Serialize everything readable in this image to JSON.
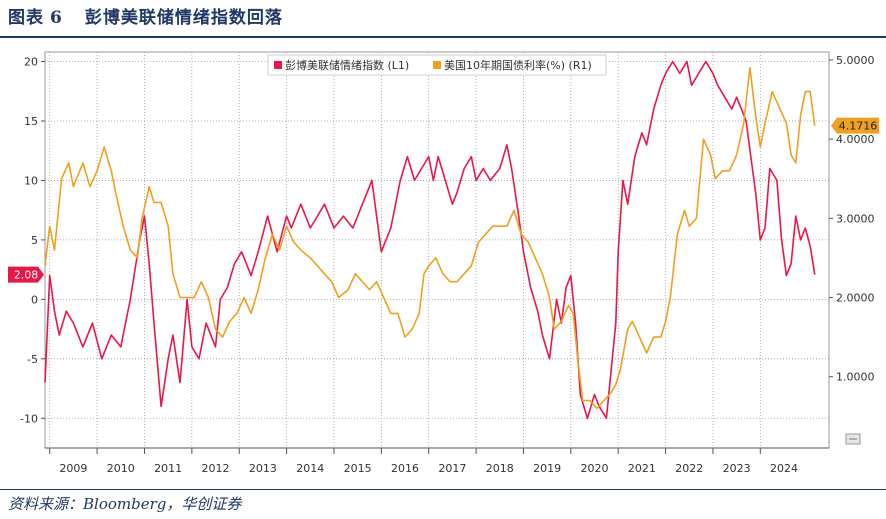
{
  "header": {
    "fig_label": "图表",
    "fig_number": "6",
    "title": "彭博美联储情绪指数回落"
  },
  "footer": {
    "source": "资料来源：Bloomberg，华创证券"
  },
  "chart_data": {
    "type": "line",
    "x_ticks": [
      "2009",
      "2010",
      "2011",
      "2012",
      "2013",
      "2014",
      "2015",
      "2016",
      "2017",
      "2018",
      "2019",
      "2020",
      "2021",
      "2022",
      "2023",
      "2024"
    ],
    "y_left": {
      "ticks": [
        "-10",
        "-5",
        "0",
        "5",
        "10",
        "15",
        "20"
      ],
      "min": -12.5,
      "max": 20.8
    },
    "y_right": {
      "ticks": [
        "1.0000",
        "2.0000",
        "3.0000",
        "4.0000",
        "5.0000"
      ],
      "min": 0.1,
      "max": 5.1
    },
    "grid": true,
    "legend_position": "top-center",
    "series": [
      {
        "name": "彭博美联储情绪指数 (L1)",
        "axis": "left",
        "color": "#e8174a",
        "last_value_label": "2.08",
        "points": [
          [
            2008.9,
            -7
          ],
          [
            2009.0,
            2
          ],
          [
            2009.1,
            -1
          ],
          [
            2009.2,
            -3
          ],
          [
            2009.35,
            -1
          ],
          [
            2009.5,
            -2
          ],
          [
            2009.7,
            -4
          ],
          [
            2009.9,
            -2
          ],
          [
            2010.1,
            -5
          ],
          [
            2010.3,
            -3
          ],
          [
            2010.5,
            -4
          ],
          [
            2010.7,
            0
          ],
          [
            2010.9,
            5
          ],
          [
            2011.0,
            7
          ],
          [
            2011.1,
            3
          ],
          [
            2011.2,
            -2
          ],
          [
            2011.35,
            -9
          ],
          [
            2011.5,
            -5
          ],
          [
            2011.6,
            -3
          ],
          [
            2011.75,
            -7
          ],
          [
            2011.9,
            0
          ],
          [
            2012.0,
            -4
          ],
          [
            2012.15,
            -5
          ],
          [
            2012.3,
            -2
          ],
          [
            2012.5,
            -4
          ],
          [
            2012.6,
            0
          ],
          [
            2012.75,
            1
          ],
          [
            2012.9,
            3
          ],
          [
            2013.05,
            4
          ],
          [
            2013.25,
            2
          ],
          [
            2013.4,
            4
          ],
          [
            2013.6,
            7
          ],
          [
            2013.8,
            4
          ],
          [
            2014.0,
            7
          ],
          [
            2014.1,
            6
          ],
          [
            2014.3,
            8
          ],
          [
            2014.5,
            6
          ],
          [
            2014.65,
            7
          ],
          [
            2014.8,
            8
          ],
          [
            2015.0,
            6
          ],
          [
            2015.2,
            7
          ],
          [
            2015.4,
            6
          ],
          [
            2015.6,
            8
          ],
          [
            2015.8,
            10
          ],
          [
            2015.9,
            7
          ],
          [
            2016.0,
            4
          ],
          [
            2016.2,
            6
          ],
          [
            2016.4,
            10
          ],
          [
            2016.55,
            12
          ],
          [
            2016.7,
            10
          ],
          [
            2016.85,
            11
          ],
          [
            2017.0,
            12
          ],
          [
            2017.1,
            10
          ],
          [
            2017.2,
            12
          ],
          [
            2017.35,
            10
          ],
          [
            2017.5,
            8
          ],
          [
            2017.6,
            9
          ],
          [
            2017.75,
            11
          ],
          [
            2017.9,
            12
          ],
          [
            2018.0,
            10
          ],
          [
            2018.15,
            11
          ],
          [
            2018.3,
            10
          ],
          [
            2018.5,
            11
          ],
          [
            2018.65,
            13
          ],
          [
            2018.75,
            11
          ],
          [
            2018.9,
            7
          ],
          [
            2019.0,
            4
          ],
          [
            2019.15,
            1
          ],
          [
            2019.3,
            -1
          ],
          [
            2019.4,
            -3
          ],
          [
            2019.55,
            -5
          ],
          [
            2019.7,
            0
          ],
          [
            2019.8,
            -2
          ],
          [
            2019.9,
            1
          ],
          [
            2020.0,
            2
          ],
          [
            2020.1,
            -2
          ],
          [
            2020.2,
            -8
          ],
          [
            2020.35,
            -10
          ],
          [
            2020.5,
            -8
          ],
          [
            2020.6,
            -9
          ],
          [
            2020.75,
            -10
          ],
          [
            2020.85,
            -6
          ],
          [
            2020.95,
            -2
          ],
          [
            2021.0,
            4
          ],
          [
            2021.1,
            10
          ],
          [
            2021.2,
            8
          ],
          [
            2021.35,
            12
          ],
          [
            2021.5,
            14
          ],
          [
            2021.6,
            13
          ],
          [
            2021.75,
            16
          ],
          [
            2021.9,
            18
          ],
          [
            2022.0,
            19
          ],
          [
            2022.15,
            20
          ],
          [
            2022.3,
            19
          ],
          [
            2022.45,
            20
          ],
          [
            2022.55,
            18
          ],
          [
            2022.7,
            19
          ],
          [
            2022.85,
            20
          ],
          [
            2023.0,
            19
          ],
          [
            2023.1,
            18
          ],
          [
            2023.25,
            17
          ],
          [
            2023.4,
            16
          ],
          [
            2023.5,
            17
          ],
          [
            2023.6,
            16
          ],
          [
            2023.7,
            15
          ],
          [
            2023.8,
            12
          ],
          [
            2023.9,
            9
          ],
          [
            2024.0,
            5
          ],
          [
            2024.1,
            6
          ],
          [
            2024.2,
            11
          ],
          [
            2024.35,
            10
          ],
          [
            2024.45,
            5
          ],
          [
            2024.55,
            2
          ],
          [
            2024.65,
            3
          ],
          [
            2024.75,
            7
          ],
          [
            2024.85,
            5
          ],
          [
            2024.95,
            6
          ],
          [
            2025.05,
            4.5
          ],
          [
            2025.15,
            2.08
          ]
        ]
      },
      {
        "name": "美国10年期国债利率(%) (R1)",
        "axis": "right",
        "color": "#f0a020",
        "last_value_label": "4.1716",
        "points": [
          [
            2008.9,
            2.4
          ],
          [
            2009.0,
            2.9
          ],
          [
            2009.1,
            2.6
          ],
          [
            2009.25,
            3.5
          ],
          [
            2009.4,
            3.7
          ],
          [
            2009.5,
            3.4
          ],
          [
            2009.7,
            3.7
          ],
          [
            2009.85,
            3.4
          ],
          [
            2010.0,
            3.6
          ],
          [
            2010.15,
            3.9
          ],
          [
            2010.3,
            3.6
          ],
          [
            2010.4,
            3.3
          ],
          [
            2010.55,
            2.9
          ],
          [
            2010.7,
            2.6
          ],
          [
            2010.85,
            2.5
          ],
          [
            2010.95,
            3.0
          ],
          [
            2011.1,
            3.4
          ],
          [
            2011.2,
            3.2
          ],
          [
            2011.35,
            3.2
          ],
          [
            2011.5,
            2.9
          ],
          [
            2011.6,
            2.3
          ],
          [
            2011.75,
            2.0
          ],
          [
            2011.9,
            2.0
          ],
          [
            2012.05,
            2.0
          ],
          [
            2012.2,
            2.2
          ],
          [
            2012.35,
            2.0
          ],
          [
            2012.5,
            1.6
          ],
          [
            2012.65,
            1.5
          ],
          [
            2012.8,
            1.7
          ],
          [
            2012.95,
            1.8
          ],
          [
            2013.1,
            2.0
          ],
          [
            2013.25,
            1.8
          ],
          [
            2013.4,
            2.1
          ],
          [
            2013.55,
            2.5
          ],
          [
            2013.7,
            2.8
          ],
          [
            2013.85,
            2.6
          ],
          [
            2014.0,
            2.9
          ],
          [
            2014.15,
            2.7
          ],
          [
            2014.3,
            2.6
          ],
          [
            2014.5,
            2.5
          ],
          [
            2014.65,
            2.4
          ],
          [
            2014.8,
            2.3
          ],
          [
            2014.95,
            2.2
          ],
          [
            2015.1,
            2.0
          ],
          [
            2015.3,
            2.1
          ],
          [
            2015.45,
            2.3
          ],
          [
            2015.6,
            2.2
          ],
          [
            2015.75,
            2.1
          ],
          [
            2015.9,
            2.2
          ],
          [
            2016.05,
            2.0
          ],
          [
            2016.2,
            1.8
          ],
          [
            2016.35,
            1.8
          ],
          [
            2016.5,
            1.5
          ],
          [
            2016.65,
            1.6
          ],
          [
            2016.8,
            1.8
          ],
          [
            2016.9,
            2.3
          ],
          [
            2017.0,
            2.4
          ],
          [
            2017.15,
            2.5
          ],
          [
            2017.3,
            2.3
          ],
          [
            2017.45,
            2.2
          ],
          [
            2017.6,
            2.2
          ],
          [
            2017.75,
            2.3
          ],
          [
            2017.9,
            2.4
          ],
          [
            2018.05,
            2.7
          ],
          [
            2018.2,
            2.8
          ],
          [
            2018.35,
            2.9
          ],
          [
            2018.5,
            2.9
          ],
          [
            2018.65,
            2.9
          ],
          [
            2018.8,
            3.1
          ],
          [
            2018.95,
            2.8
          ],
          [
            2019.1,
            2.7
          ],
          [
            2019.25,
            2.5
          ],
          [
            2019.4,
            2.3
          ],
          [
            2019.55,
            2.0
          ],
          [
            2019.65,
            1.6
          ],
          [
            2019.8,
            1.7
          ],
          [
            2019.95,
            1.9
          ],
          [
            2020.05,
            1.8
          ],
          [
            2020.15,
            1.2
          ],
          [
            2020.25,
            0.7
          ],
          [
            2020.4,
            0.7
          ],
          [
            2020.55,
            0.6
          ],
          [
            2020.7,
            0.7
          ],
          [
            2020.85,
            0.8
          ],
          [
            2020.95,
            0.9
          ],
          [
            2021.05,
            1.1
          ],
          [
            2021.2,
            1.6
          ],
          [
            2021.3,
            1.7
          ],
          [
            2021.45,
            1.5
          ],
          [
            2021.6,
            1.3
          ],
          [
            2021.75,
            1.5
          ],
          [
            2021.9,
            1.5
          ],
          [
            2022.0,
            1.7
          ],
          [
            2022.1,
            2.0
          ],
          [
            2022.25,
            2.8
          ],
          [
            2022.4,
            3.1
          ],
          [
            2022.5,
            2.9
          ],
          [
            2022.65,
            3.0
          ],
          [
            2022.8,
            4.0
          ],
          [
            2022.95,
            3.8
          ],
          [
            2023.05,
            3.5
          ],
          [
            2023.2,
            3.6
          ],
          [
            2023.35,
            3.6
          ],
          [
            2023.5,
            3.8
          ],
          [
            2023.65,
            4.2
          ],
          [
            2023.78,
            4.9
          ],
          [
            2023.9,
            4.3
          ],
          [
            2024.0,
            3.9
          ],
          [
            2024.1,
            4.2
          ],
          [
            2024.25,
            4.6
          ],
          [
            2024.4,
            4.4
          ],
          [
            2024.55,
            4.2
          ],
          [
            2024.65,
            3.8
          ],
          [
            2024.75,
            3.7
          ],
          [
            2024.85,
            4.3
          ],
          [
            2024.95,
            4.6
          ],
          [
            2025.05,
            4.6
          ],
          [
            2025.15,
            4.17
          ]
        ]
      }
    ]
  }
}
